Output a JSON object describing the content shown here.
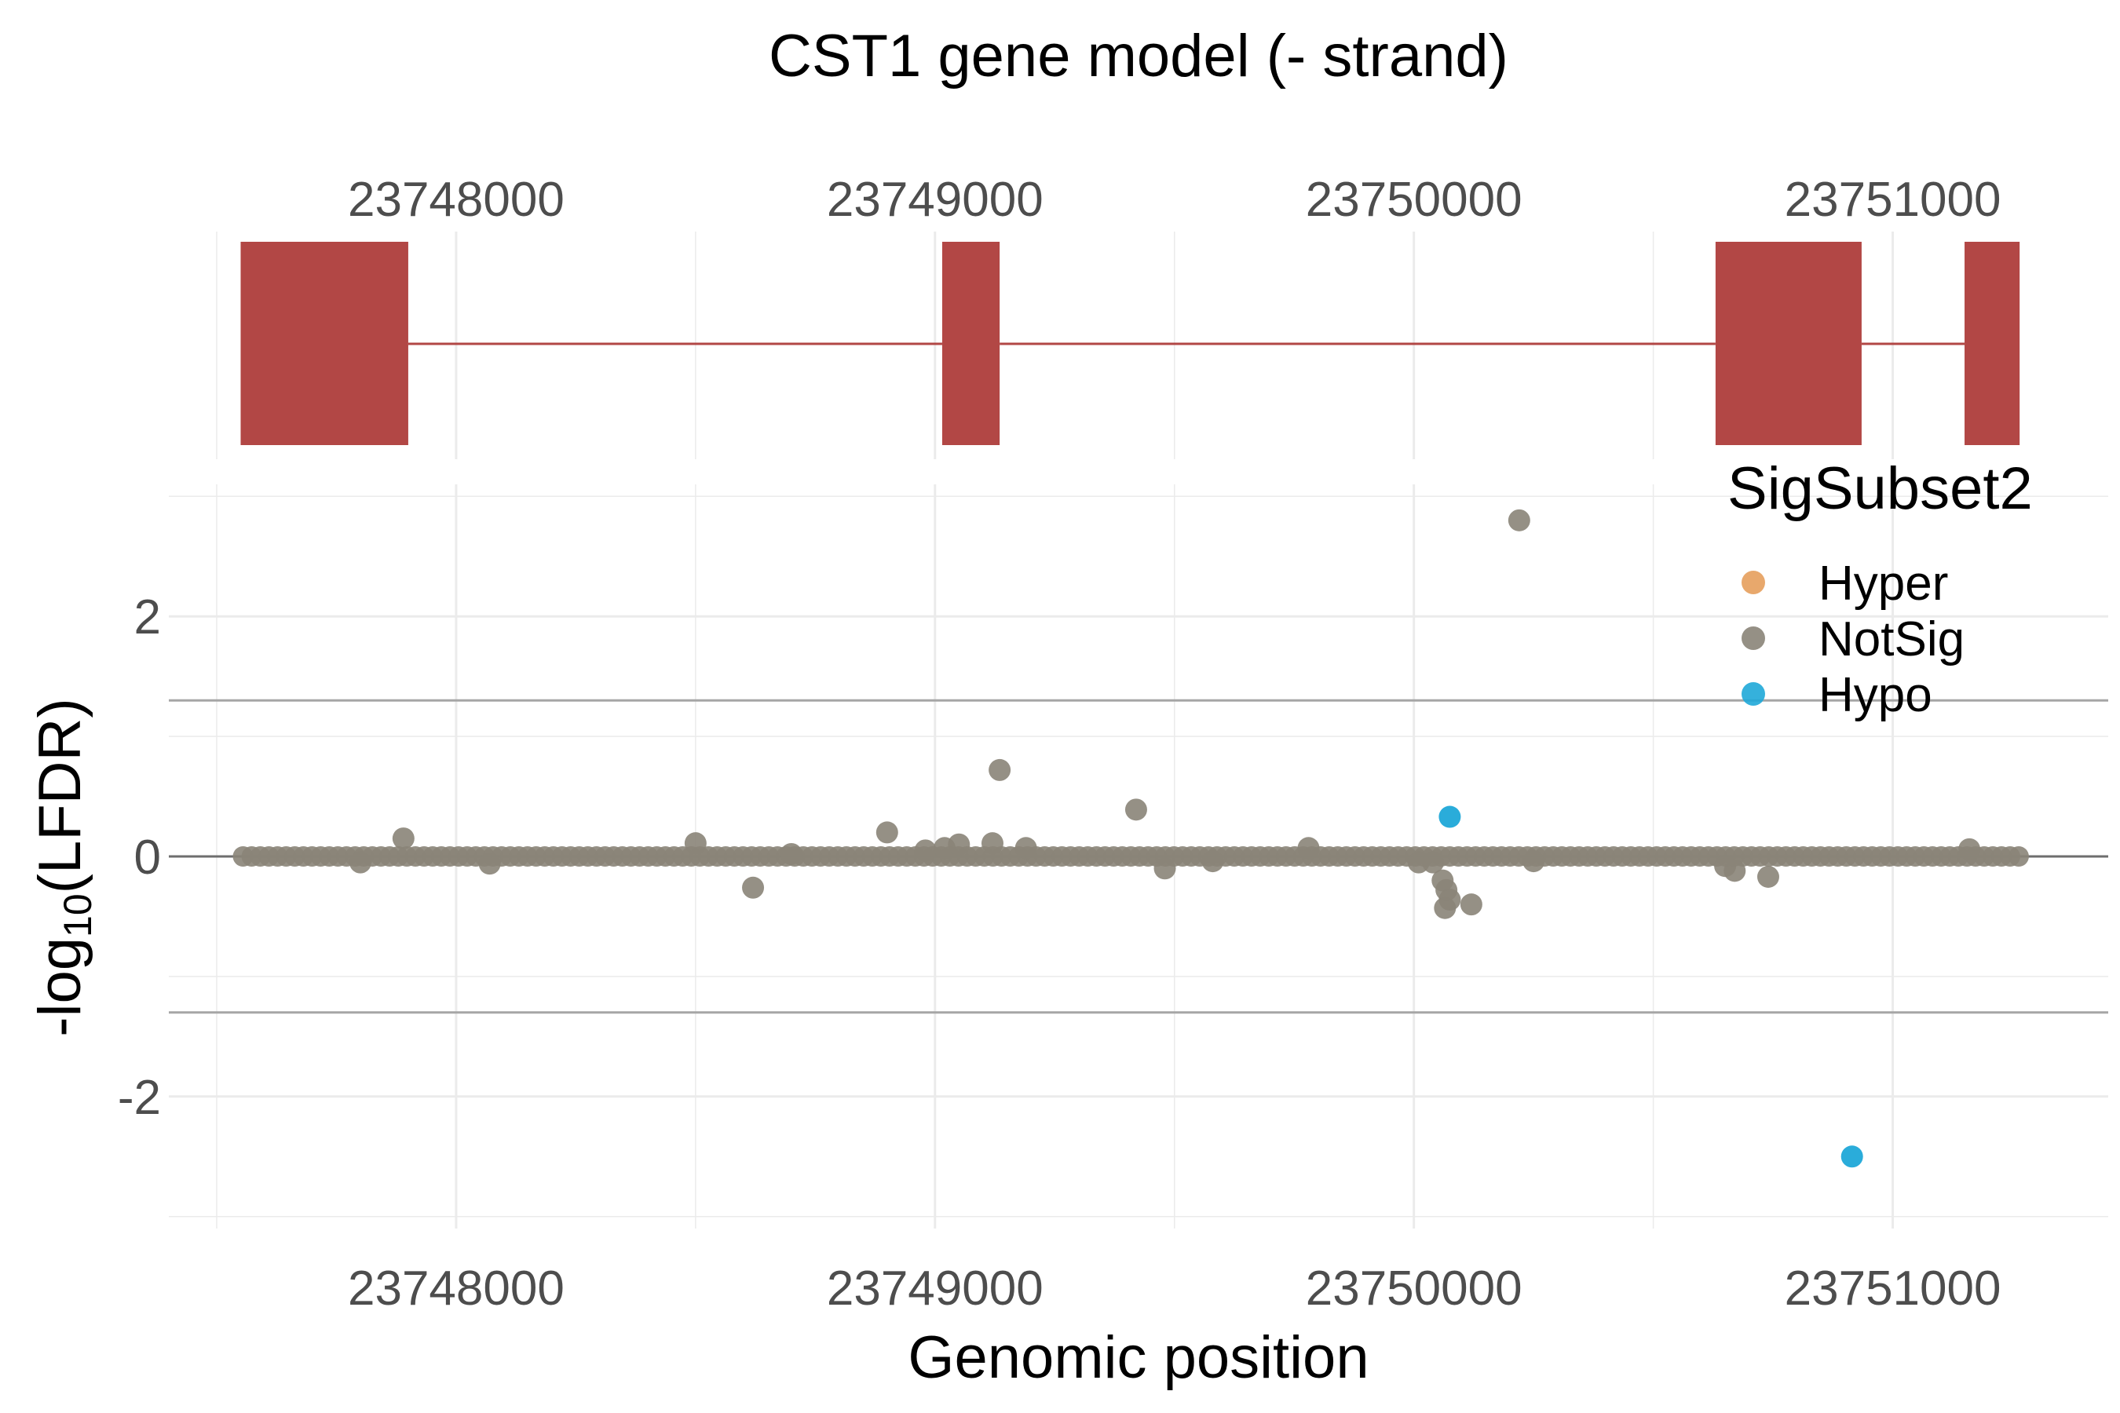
{
  "chart_data": [
    {
      "type": "gene-model",
      "title": "CST1 gene model (- strand)",
      "x_ticks": [
        23748000,
        23749000,
        23750000,
        23751000
      ],
      "xlim": [
        23747400,
        23751450
      ],
      "colors": {
        "exon": "#b24745",
        "intron": "#b24745",
        "grid": "#ebebeb"
      },
      "exons": [
        {
          "start": 23747550,
          "end": 23747900
        },
        {
          "start": 23749015,
          "end": 23749135
        },
        {
          "start": 23750630,
          "end": 23750935
        },
        {
          "start": 23751150,
          "end": 23751265
        }
      ],
      "introns": [
        {
          "start": 23747900,
          "end": 23749015
        },
        {
          "start": 23749135,
          "end": 23750630
        },
        {
          "start": 23750935,
          "end": 23751150
        }
      ]
    },
    {
      "type": "scatter",
      "xlabel": "Genomic position",
      "ylabel_main": "-log",
      "ylabel_sub": "10",
      "ylabel_tail": "(LFDR)",
      "x_ticks": [
        23748000,
        23749000,
        23750000,
        23751000
      ],
      "y_ticks": [
        -2,
        0,
        2
      ],
      "xlim": [
        23747400,
        23751450
      ],
      "ylim": [
        -3.1,
        3.1
      ],
      "threshold_lines": [
        1.3,
        -1.3
      ],
      "zero_line": 0,
      "legend": {
        "title": "SigSubset2",
        "placement": "top-right",
        "items": [
          {
            "label": "Hyper",
            "color": "#e69f5c"
          },
          {
            "label": "NotSig",
            "color": "#8a8478"
          },
          {
            "label": "Hypo",
            "color": "#1fa8d8"
          }
        ]
      },
      "baseline": {
        "from": 23747555,
        "to": 23751270,
        "step": 18,
        "value": 0,
        "subset": "NotSig"
      },
      "series": [
        {
          "name": "NotSig",
          "color": "#8a8478",
          "points": [
            [
              23747890,
              0.15
            ],
            [
              23747800,
              -0.05
            ],
            [
              23748070,
              -0.06
            ],
            [
              23748500,
              0.11
            ],
            [
              23748620,
              -0.26
            ],
            [
              23748700,
              0.02
            ],
            [
              23748900,
              0.2
            ],
            [
              23748980,
              0.05
            ],
            [
              23749020,
              0.07
            ],
            [
              23749050,
              0.1
            ],
            [
              23749120,
              0.11
            ],
            [
              23749135,
              0.72
            ],
            [
              23749190,
              0.07
            ],
            [
              23749420,
              0.39
            ],
            [
              23749480,
              -0.1
            ],
            [
              23749580,
              -0.04
            ],
            [
              23749780,
              0.07
            ],
            [
              23750010,
              -0.05
            ],
            [
              23750040,
              -0.05
            ],
            [
              23750060,
              -0.2
            ],
            [
              23750065,
              -0.43
            ],
            [
              23750068,
              -0.28
            ],
            [
              23750075,
              -0.36
            ],
            [
              23750120,
              -0.4
            ],
            [
              23750220,
              2.8
            ],
            [
              23750250,
              -0.04
            ],
            [
              23750650,
              -0.08
            ],
            [
              23750670,
              -0.12
            ],
            [
              23750740,
              -0.17
            ],
            [
              23751160,
              0.06
            ]
          ]
        },
        {
          "name": "Hypo",
          "color": "#1fa8d8",
          "points": [
            [
              23750075,
              0.33
            ],
            [
              23750915,
              -2.5
            ]
          ]
        }
      ]
    }
  ]
}
